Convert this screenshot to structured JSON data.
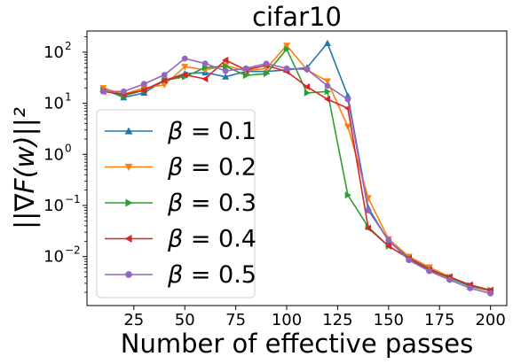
{
  "chart_data": {
    "type": "line",
    "title": "cifar10",
    "xlabel": "Number of effective passes",
    "ylabel": "||∇F(w)||²",
    "yscale": "log",
    "xlim": [
      2,
      208
    ],
    "ylim": [
      0.0011,
      260
    ],
    "x_ticks": [
      25,
      50,
      75,
      100,
      125,
      150,
      175,
      200
    ],
    "y_ticks": [
      {
        "value": 0.01,
        "base": "10",
        "exp": "−2"
      },
      {
        "value": 0.1,
        "base": "10",
        "exp": "−1"
      },
      {
        "value": 1,
        "base": "10",
        "exp": "0"
      },
      {
        "value": 10,
        "base": "10",
        "exp": "1"
      },
      {
        "value": 100,
        "base": "10",
        "exp": "2"
      }
    ],
    "grid": false,
    "legend_position": "lower-left",
    "x": [
      10,
      20,
      30,
      40,
      50,
      60,
      70,
      80,
      90,
      100,
      110,
      120,
      130,
      140,
      150,
      160,
      170,
      180,
      190,
      200
    ],
    "series": [
      {
        "name": "β = 0.1",
        "beta": "0.1",
        "color": "#1f77b4",
        "marker": "triangle-up",
        "values": [
          19,
          13,
          16,
          28,
          38,
          40,
          33,
          42,
          42,
          45,
          50,
          150,
          14,
          0.09,
          0.02,
          0.0095,
          0.0058,
          0.0038,
          0.0026,
          0.0021
        ]
      },
      {
        "name": "β = 0.2",
        "beta": "0.2",
        "color": "#ff7f0e",
        "marker": "triangle-down",
        "values": [
          20,
          15,
          20,
          23,
          52,
          45,
          55,
          43,
          48,
          135,
          45,
          27,
          3.5,
          0.14,
          0.022,
          0.01,
          0.0062,
          0.004,
          0.0027,
          0.0021
        ]
      },
      {
        "name": "β = 0.3",
        "beta": "0.3",
        "color": "#2ca02c",
        "marker": "triangle-right",
        "values": [
          18,
          14,
          18,
          28,
          33,
          50,
          53,
          35,
          38,
          115,
          16,
          17,
          0.16,
          0.038,
          0.016,
          0.0092,
          0.0055,
          0.0038,
          0.0027,
          0.0022
        ]
      },
      {
        "name": "β = 0.4",
        "beta": "0.4",
        "color": "#d62728",
        "marker": "triangle-left",
        "values": [
          17,
          15,
          18,
          28,
          36,
          30,
          70,
          45,
          55,
          42,
          21,
          12,
          8,
          0.036,
          0.016,
          0.0092,
          0.0055,
          0.004,
          0.0028,
          0.0022
        ]
      },
      {
        "name": "β = 0.5",
        "beta": "0.5",
        "color": "#9467bd",
        "marker": "circle",
        "values": [
          17,
          17,
          24,
          36,
          75,
          60,
          43,
          48,
          60,
          48,
          46,
          22,
          12,
          0.08,
          0.021,
          0.0085,
          0.0052,
          0.0035,
          0.0024,
          0.0019
        ]
      }
    ]
  }
}
